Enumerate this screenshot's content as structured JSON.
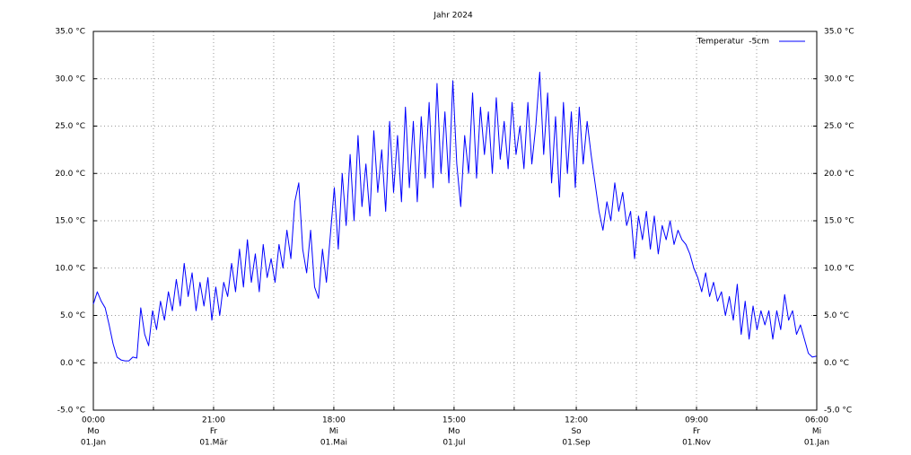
{
  "chart_data": {
    "type": "line",
    "title": "Jahr 2024",
    "xlim": [
      0,
      366.25
    ],
    "xticks": [
      {
        "value": 0,
        "label": [
          "00:00",
          "Mo",
          "01.Jan"
        ]
      },
      {
        "value": 30.4375,
        "label": null
      },
      {
        "value": 60.875,
        "label": [
          "21:00",
          "Fr",
          "01.Mär"
        ]
      },
      {
        "value": 91.3125,
        "label": null
      },
      {
        "value": 121.75,
        "label": [
          "18:00",
          "Mi",
          "01.Mai"
        ]
      },
      {
        "value": 152.1875,
        "label": null
      },
      {
        "value": 182.625,
        "label": [
          "15:00",
          "Mo",
          "01.Jul"
        ]
      },
      {
        "value": 213.0625,
        "label": null
      },
      {
        "value": 244.5,
        "label": [
          "12:00",
          "So",
          "01.Sep"
        ]
      },
      {
        "value": 274.9375,
        "label": null
      },
      {
        "value": 305.375,
        "label": [
          "09:00",
          "Fr",
          "01.Nov"
        ]
      },
      {
        "value": 335.8125,
        "label": null
      },
      {
        "value": 366.25,
        "label": [
          "06:00",
          "Mi",
          "01.Jan"
        ]
      }
    ],
    "ylim": [
      -5,
      35
    ],
    "yticks": [
      {
        "value": -5,
        "label": "-5.0 °C"
      },
      {
        "value": 0,
        "label": "0.0 °C"
      },
      {
        "value": 5,
        "label": "5.0 °C"
      },
      {
        "value": 10,
        "label": "10.0 °C"
      },
      {
        "value": 15,
        "label": "15.0 °C"
      },
      {
        "value": 20,
        "label": "20.0 °C"
      },
      {
        "value": 25,
        "label": "25.0 °C"
      },
      {
        "value": 30,
        "label": "30.0 °C"
      },
      {
        "value": 35,
        "label": "35.0 °C"
      }
    ],
    "y2lim": [
      -5,
      35
    ],
    "y2ticks": [
      {
        "value": -5,
        "label": "-5.0 °C"
      },
      {
        "value": 0,
        "label": "0.0 °C"
      },
      {
        "value": 5,
        "label": "5.0 °C"
      },
      {
        "value": 10,
        "label": "10.0 °C"
      },
      {
        "value": 15,
        "label": "15.0 °C"
      },
      {
        "value": 20,
        "label": "20.0 °C"
      },
      {
        "value": 25,
        "label": "25.0 °C"
      },
      {
        "value": 30,
        "label": "30.0 °C"
      },
      {
        "value": 35,
        "label": "35.0 °C"
      }
    ],
    "grid": true,
    "legend": "top-right",
    "x": [
      0,
      2,
      4,
      6,
      8,
      10,
      12,
      14,
      16,
      18,
      20,
      22,
      24,
      26,
      28,
      30,
      32,
      34,
      36,
      38,
      40,
      42,
      44,
      46,
      48,
      50,
      52,
      54,
      56,
      58,
      60,
      62,
      64,
      66,
      68,
      70,
      72,
      74,
      76,
      78,
      80,
      82,
      84,
      86,
      88,
      90,
      92,
      94,
      96,
      98,
      100,
      102,
      104,
      106,
      108,
      110,
      112,
      114,
      116,
      118,
      120,
      122,
      124,
      126,
      128,
      130,
      132,
      134,
      136,
      138,
      140,
      142,
      144,
      146,
      148,
      150,
      152,
      154,
      156,
      158,
      160,
      162,
      164,
      166,
      168,
      170,
      172,
      174,
      176,
      178,
      180,
      182,
      184,
      186,
      188,
      190,
      192,
      194,
      196,
      198,
      200,
      202,
      204,
      206,
      208,
      210,
      212,
      214,
      216,
      218,
      220,
      222,
      224,
      226,
      228,
      230,
      232,
      234,
      236,
      238,
      240,
      242,
      244,
      246,
      248,
      250,
      252,
      254,
      256,
      258,
      260,
      262,
      264,
      266,
      268,
      270,
      272,
      274,
      276,
      278,
      280,
      282,
      284,
      286,
      288,
      290,
      292,
      294,
      296,
      298,
      300,
      302,
      304,
      306,
      308,
      310,
      312,
      314,
      316,
      318,
      320,
      322,
      324,
      326,
      328,
      330,
      332,
      334,
      336,
      338,
      340,
      342,
      344,
      346,
      348,
      350,
      352,
      354,
      356,
      358,
      360,
      362,
      364,
      366
    ],
    "series": [
      {
        "name": "Temperatur  -5cm",
        "color": "#0000ff",
        "values": [
          6.2,
          7.5,
          6.5,
          5.8,
          4.0,
          2.0,
          0.6,
          0.3,
          0.2,
          0.2,
          0.6,
          0.5,
          5.8,
          3.0,
          1.8,
          5.5,
          3.5,
          6.5,
          4.5,
          7.5,
          5.5,
          8.8,
          6.0,
          10.5,
          7.0,
          9.5,
          5.5,
          8.5,
          6.0,
          9.0,
          4.5,
          8.0,
          5.0,
          8.5,
          7.0,
          10.5,
          7.5,
          12.0,
          8.0,
          13.0,
          8.5,
          11.5,
          7.5,
          12.5,
          9.0,
          11.0,
          8.5,
          12.5,
          10.0,
          14.0,
          11.0,
          17.0,
          19.0,
          12.0,
          9.5,
          14.0,
          8.0,
          6.8,
          12.0,
          8.5,
          13.5,
          18.5,
          12.0,
          20.0,
          14.5,
          22.0,
          15.0,
          24.0,
          16.5,
          21.0,
          15.5,
          24.5,
          18.0,
          22.5,
          16.0,
          25.5,
          18.0,
          24.0,
          17.0,
          27.0,
          18.5,
          25.5,
          17.0,
          26.0,
          19.5,
          27.5,
          18.5,
          29.5,
          20.0,
          26.5,
          19.0,
          29.8,
          21.0,
          16.5,
          24.0,
          20.0,
          28.5,
          19.5,
          27.0,
          22.0,
          26.5,
          20.0,
          28.0,
          21.5,
          25.5,
          20.5,
          27.5,
          22.0,
          25.0,
          20.5,
          27.5,
          21.0,
          25.0,
          30.7,
          22.0,
          28.5,
          19.0,
          26.0,
          17.5,
          27.5,
          20.0,
          26.5,
          18.5,
          27.0,
          21.0,
          25.5,
          22.0,
          19.0,
          16.0,
          14.0,
          17.0,
          15.0,
          19.0,
          16.0,
          18.0,
          14.5,
          16.0,
          11.0,
          15.5,
          13.0,
          16.0,
          12.0,
          15.5,
          11.5,
          14.5,
          13.0,
          15.0,
          12.5,
          14.0,
          13.0,
          12.5,
          11.5,
          10.0,
          9.0,
          7.5,
          9.5,
          7.0,
          8.5,
          6.5,
          7.5,
          5.0,
          7.0,
          4.5,
          8.3,
          3.0,
          6.5,
          2.5,
          6.0,
          3.5,
          5.5,
          4.0,
          5.5,
          2.5,
          5.5,
          3.5,
          7.2,
          4.5,
          5.5,
          3.0,
          4.0,
          2.5,
          1.0,
          0.6,
          0.7
        ]
      }
    ]
  }
}
